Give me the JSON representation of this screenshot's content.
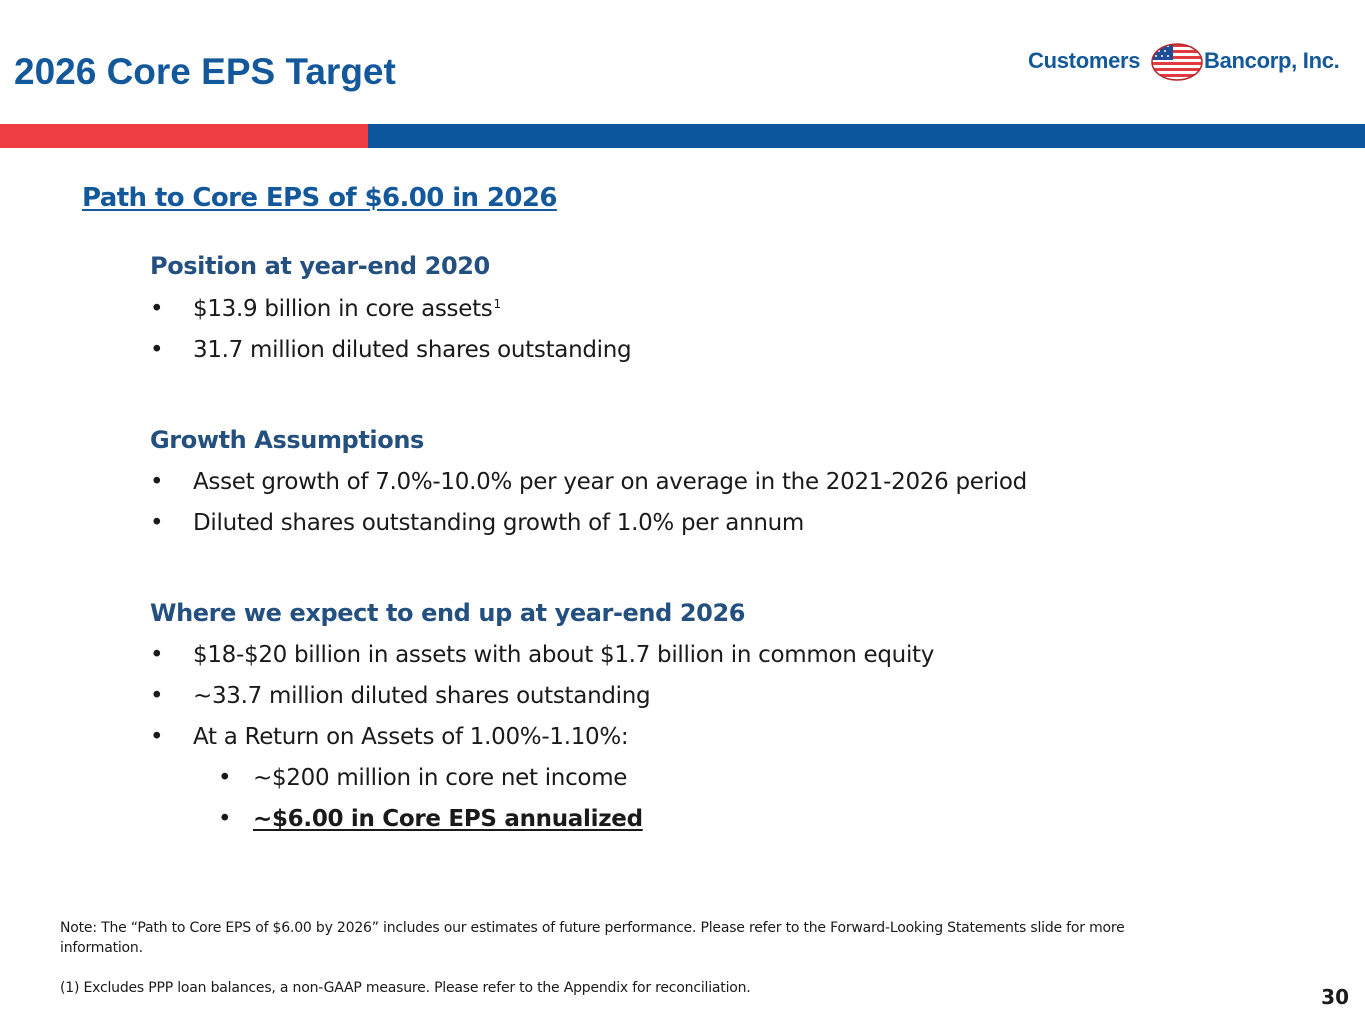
{
  "slide": {
    "title": "2026 Core EPS Target",
    "page_number": "30"
  },
  "logo": {
    "word_left": "Customers",
    "word_right": "Bancorp, Inc.",
    "flag_icon": "us-flag-icon"
  },
  "colors": {
    "brand_blue": "#13589a",
    "accent_red": "#ef3e42",
    "bar_blue": "#0d569e",
    "subhead_blue": "#24507f"
  },
  "content": {
    "heading": "Path to Core EPS of $6.00 in 2026",
    "sections": [
      {
        "title": "Position at year-end 2020",
        "bullets": [
          {
            "text": "$13.9 billion in core assets",
            "footnote": "1"
          },
          {
            "text": "31.7 million diluted shares outstanding"
          }
        ]
      },
      {
        "title": "Growth Assumptions",
        "bullets": [
          {
            "text": "Asset growth of 7.0%-10.0% per year on average in the 2021-2026 period"
          },
          {
            "text": "Diluted shares outstanding growth of 1.0% per annum"
          }
        ]
      },
      {
        "title": "Where we expect to end up at year-end 2026",
        "bullets": [
          {
            "text": "$18-$20 billion in assets with about $1.7 billion in common equity"
          },
          {
            "text": "~33.7 million diluted shares outstanding"
          },
          {
            "text": "At a Return on Assets of 1.00%-1.10%:"
          }
        ],
        "sub_bullets": [
          {
            "text": "~$200 million in core net income"
          },
          {
            "text": "~$6.00 in Core EPS annualized"
          }
        ]
      }
    ]
  },
  "notes": {
    "note": "Note: The “Path to Core EPS of $6.00 by 2026” includes our estimates of future performance. Please refer to the Forward-Looking Statements slide for more information.",
    "footnote_1": "(1) Excludes PPP loan balances, a non-GAAP measure. Please refer to the Appendix for reconciliation."
  },
  "bullet_glyph": "•"
}
